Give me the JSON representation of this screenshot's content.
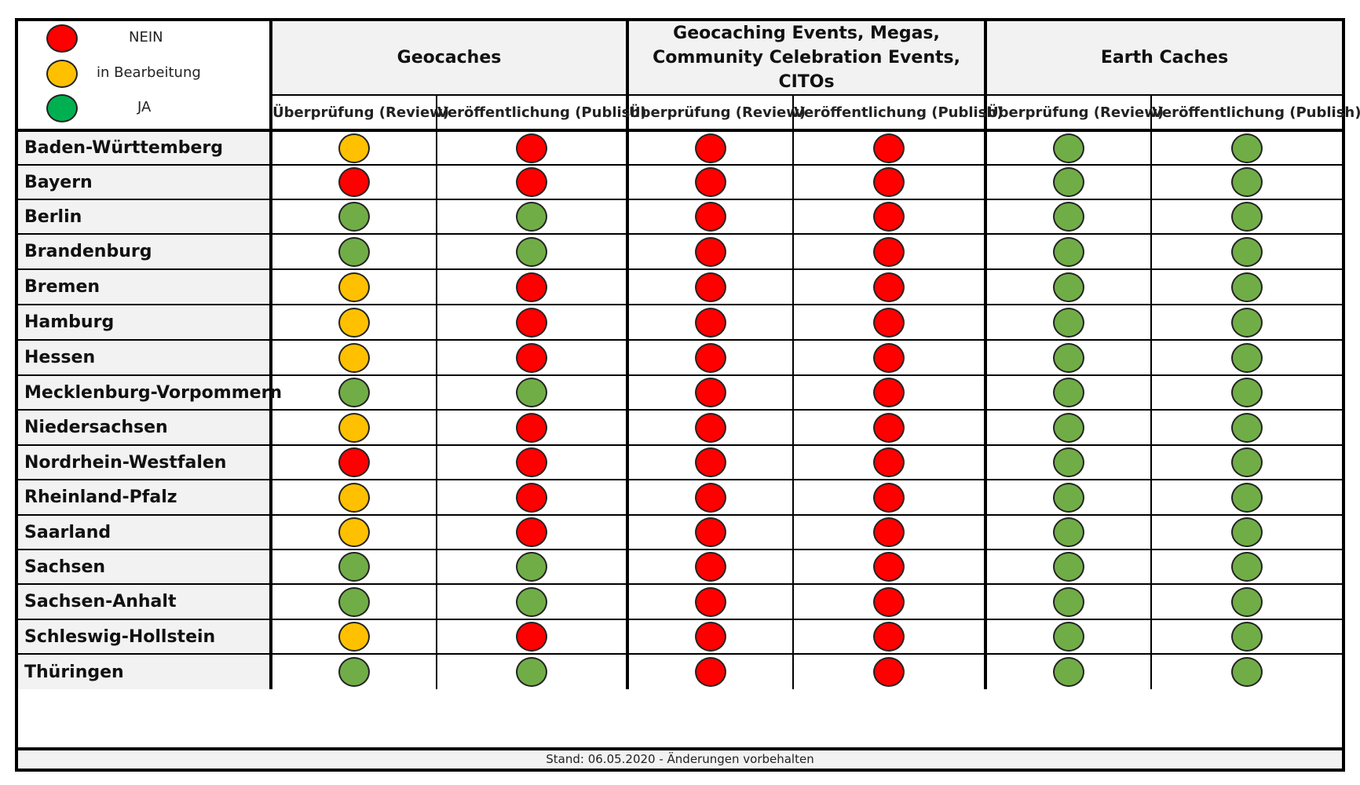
{
  "legend": {
    "items": [
      {
        "label": "NEIN",
        "color": "#ff0000"
      },
      {
        "label": "in Bearbeitung",
        "color": "#ffc000"
      },
      {
        "label": "JA",
        "color": "#00b050"
      }
    ]
  },
  "colors": {
    "NEIN": "#ff0000",
    "in Bearbeitung": "#ffc000",
    "JA": "#70ad47"
  },
  "groups": [
    {
      "title_lines": [
        "Geocaches"
      ]
    },
    {
      "title_lines": [
        "Geocaching Events, Megas,",
        "Community Celebration Events, CITOs"
      ]
    },
    {
      "title_lines": [
        "Earth Caches"
      ]
    }
  ],
  "subheaders": [
    "Überprüfung (Review)",
    "Veröffentlichung (Publish)",
    "Überprüfung (Review)",
    "Veröffentlichung (Publish)",
    "Überprüfung (Review)",
    "Veröffentlichung (Publish)"
  ],
  "rows": [
    {
      "state": "Baden-Württemberg",
      "status": [
        "in Bearbeitung",
        "NEIN",
        "NEIN",
        "NEIN",
        "JA",
        "JA"
      ]
    },
    {
      "state": "Bayern",
      "status": [
        "NEIN",
        "NEIN",
        "NEIN",
        "NEIN",
        "JA",
        "JA"
      ]
    },
    {
      "state": "Berlin",
      "status": [
        "JA",
        "JA",
        "NEIN",
        "NEIN",
        "JA",
        "JA"
      ]
    },
    {
      "state": "Brandenburg",
      "status": [
        "JA",
        "JA",
        "NEIN",
        "NEIN",
        "JA",
        "JA"
      ]
    },
    {
      "state": "Bremen",
      "status": [
        "in Bearbeitung",
        "NEIN",
        "NEIN",
        "NEIN",
        "JA",
        "JA"
      ]
    },
    {
      "state": "Hamburg",
      "status": [
        "in Bearbeitung",
        "NEIN",
        "NEIN",
        "NEIN",
        "JA",
        "JA"
      ]
    },
    {
      "state": "Hessen",
      "status": [
        "in Bearbeitung",
        "NEIN",
        "NEIN",
        "NEIN",
        "JA",
        "JA"
      ]
    },
    {
      "state": "Mecklenburg-Vorpommern",
      "status": [
        "JA",
        "JA",
        "NEIN",
        "NEIN",
        "JA",
        "JA"
      ]
    },
    {
      "state": "Niedersachsen",
      "status": [
        "in Bearbeitung",
        "NEIN",
        "NEIN",
        "NEIN",
        "JA",
        "JA"
      ]
    },
    {
      "state": "Nordrhein-Westfalen",
      "status": [
        "NEIN",
        "NEIN",
        "NEIN",
        "NEIN",
        "JA",
        "JA"
      ]
    },
    {
      "state": "Rheinland-Pfalz",
      "status": [
        "in Bearbeitung",
        "NEIN",
        "NEIN",
        "NEIN",
        "JA",
        "JA"
      ]
    },
    {
      "state": "Saarland",
      "status": [
        "in Bearbeitung",
        "NEIN",
        "NEIN",
        "NEIN",
        "JA",
        "JA"
      ]
    },
    {
      "state": "Sachsen",
      "status": [
        "JA",
        "JA",
        "NEIN",
        "NEIN",
        "JA",
        "JA"
      ]
    },
    {
      "state": "Sachsen-Anhalt",
      "status": [
        "JA",
        "JA",
        "NEIN",
        "NEIN",
        "JA",
        "JA"
      ]
    },
    {
      "state": "Schleswig-Hollstein",
      "status": [
        "in Bearbeitung",
        "NEIN",
        "NEIN",
        "NEIN",
        "JA",
        "JA"
      ]
    },
    {
      "state": "Thüringen",
      "status": [
        "JA",
        "JA",
        "NEIN",
        "NEIN",
        "JA",
        "JA"
      ]
    }
  ],
  "footer": "Stand: 06.05.2020 - Änderungen vorbehalten"
}
